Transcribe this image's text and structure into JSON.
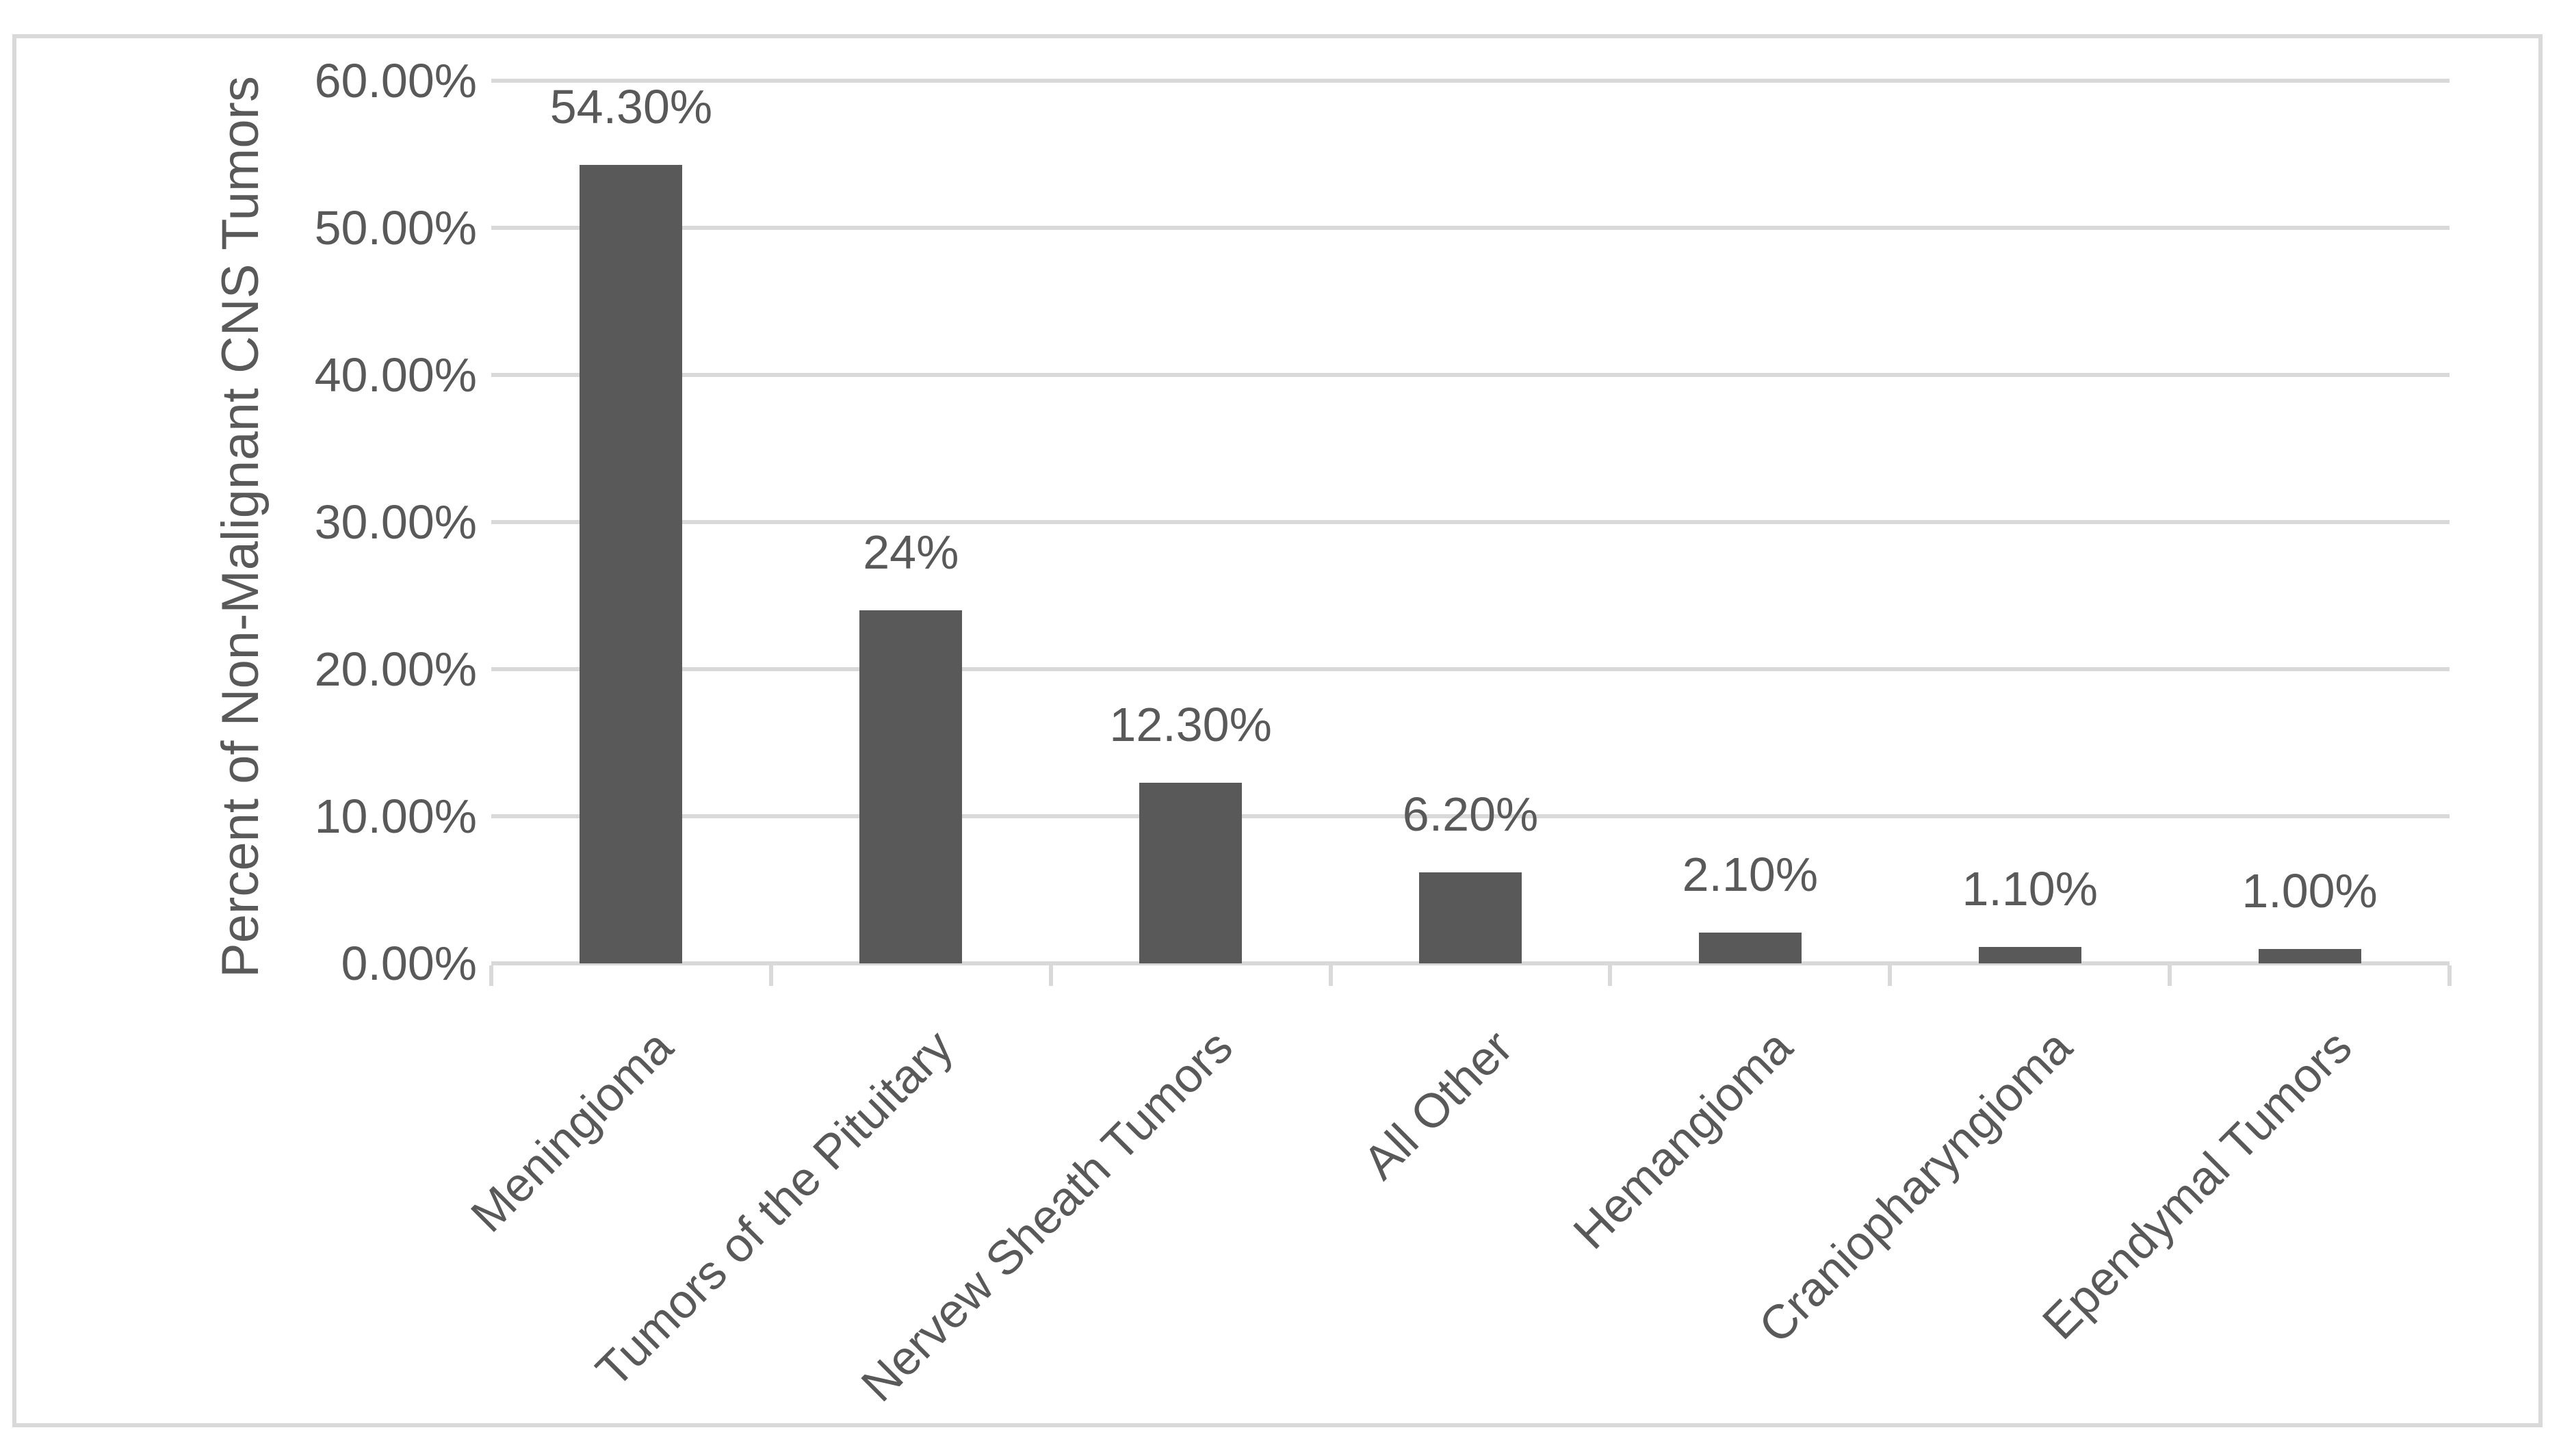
{
  "chart_data": {
    "type": "bar",
    "title": "",
    "xlabel": "",
    "ylabel": "Percent of Non-Malignant CNS Tumors",
    "categories": [
      "Meningioma",
      "Tumors of the Pituitary",
      "Nervew Sheath Tumors",
      "All Other",
      "Hemangioma",
      "Craniopharyngioma",
      "Ependymal Tumors"
    ],
    "values": [
      54.3,
      24,
      12.3,
      6.2,
      2.1,
      1.1,
      1.0
    ],
    "value_labels": [
      "54.30%",
      "24%",
      "12.30%",
      "6.20%",
      "2.10%",
      "1.10%",
      "1.00%"
    ],
    "ytick_labels": [
      "0.00%",
      "10.00%",
      "20.00%",
      "30.00%",
      "40.00%",
      "50.00%",
      "60.00%"
    ],
    "ytick_step": 10,
    "ylim": [
      0,
      60
    ],
    "grid": true,
    "legend": false,
    "colors": {
      "bar": "#595959",
      "grid": "#D9D9D9",
      "axis": "#D9D9D9",
      "tick": "#D9D9D9",
      "text": "#595959",
      "frame": "#D9D9D9",
      "background": "#FFFFFF"
    }
  }
}
